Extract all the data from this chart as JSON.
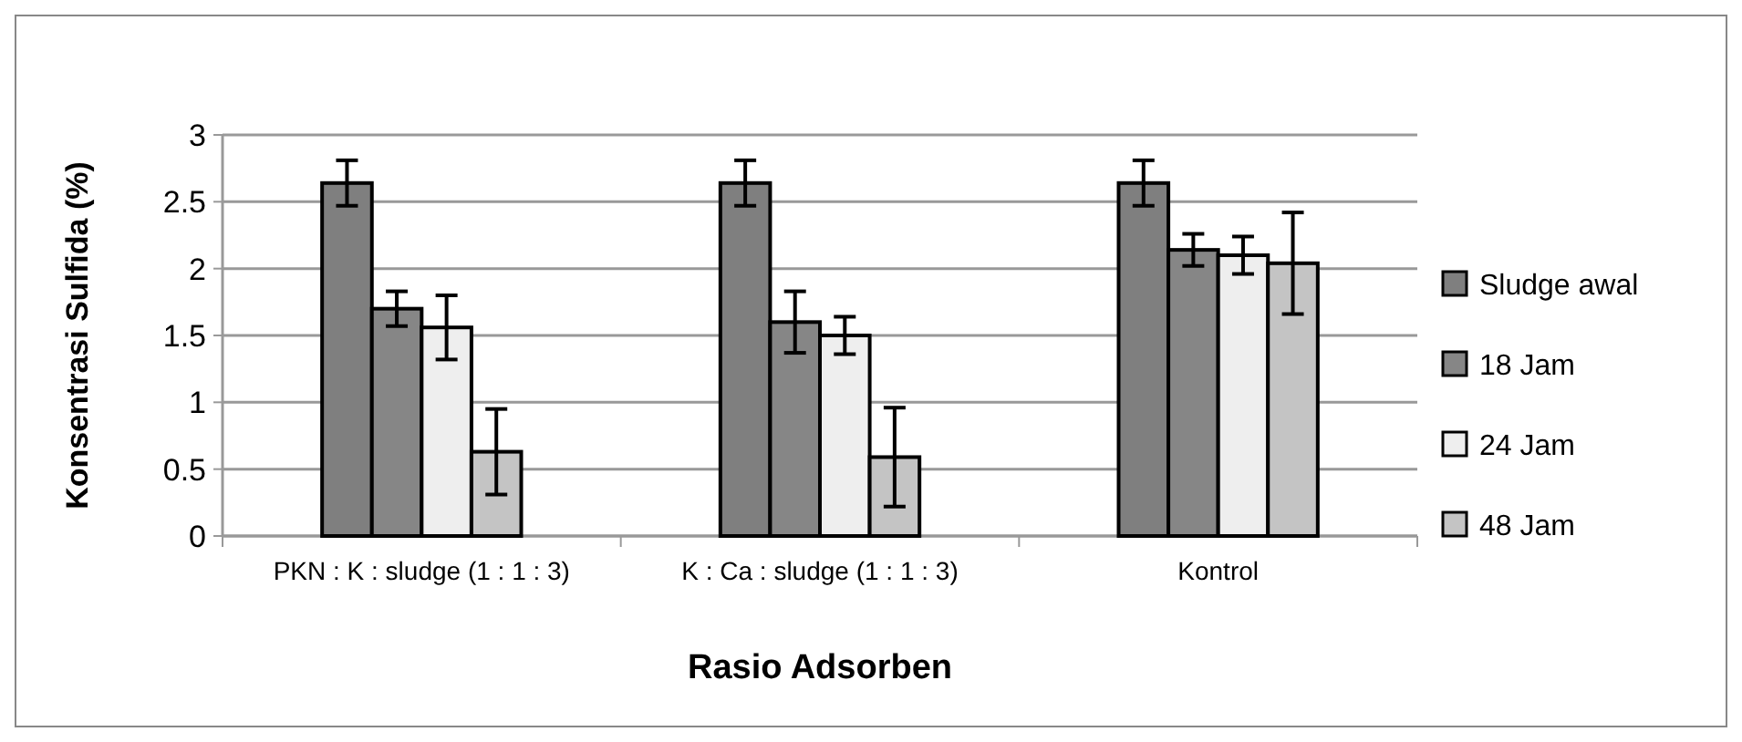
{
  "chart_data": {
    "type": "bar",
    "xlabel": "Rasio Adsorben",
    "ylabel": "Konsentrasi Sulfida (%)",
    "categories": [
      "PKN : K : sludge (1 : 1 : 3)",
      "K : Ca : sludge (1 : 1 : 3)",
      "Kontrol"
    ],
    "series": [
      {
        "name": "Sludge awal",
        "color": "#7f7f7f",
        "values": [
          2.64,
          2.64,
          2.64
        ],
        "errors": [
          0.17,
          0.17,
          0.17
        ]
      },
      {
        "name": "18 Jam",
        "color": "#868686",
        "values": [
          1.7,
          1.6,
          2.14
        ],
        "errors": [
          0.13,
          0.23,
          0.12
        ]
      },
      {
        "name": "24 Jam",
        "color": "#eeeeee",
        "values": [
          1.56,
          1.5,
          2.1
        ],
        "errors": [
          0.24,
          0.14,
          0.14
        ]
      },
      {
        "name": "48 Jam",
        "color": "#c4c4c4",
        "values": [
          0.63,
          0.59,
          2.04
        ],
        "errors": [
          0.32,
          0.37,
          0.38
        ]
      }
    ],
    "ylim": [
      0,
      3
    ],
    "yticks": [
      0,
      0.5,
      1,
      1.5,
      2,
      2.5,
      3
    ],
    "grid": "y",
    "legend": "right"
  }
}
